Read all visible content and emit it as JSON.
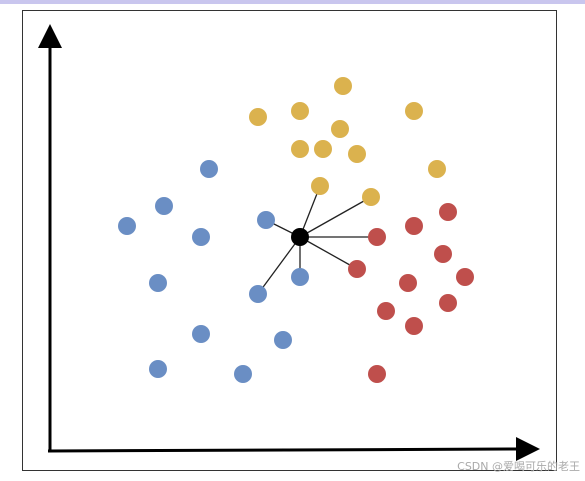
{
  "watermark": "CSDN @爱喝可乐的老王"
}
